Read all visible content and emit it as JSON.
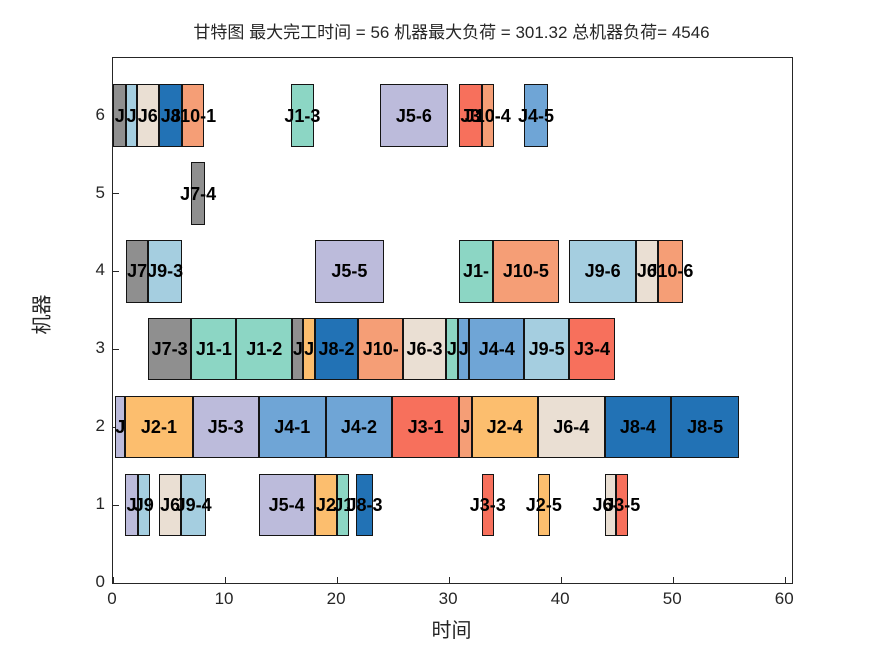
{
  "title": "甘特图 最大完工时间 = 56 机器最大负荷 = 301.32 总机器负荷= 4546",
  "stats": {
    "makespan": 56,
    "max_machine_load": 301.32,
    "total_machine_load": 4546
  },
  "chart_data": {
    "type": "bar",
    "subtype": "gantt",
    "title": "甘特图 最大完工时间 = 56 机器最大负荷 = 301.32 总机器负荷= 4546",
    "xlabel": "时间",
    "ylabel": "机器",
    "xlim": [
      0,
      60.6
    ],
    "ylim": [
      0,
      6.74
    ],
    "x_ticks": [
      0,
      10,
      20,
      30,
      40,
      50,
      60
    ],
    "y_ticks": [
      0,
      1,
      2,
      3,
      4,
      5,
      6
    ],
    "bar_height_units": 0.8,
    "grid": false,
    "legend": "none",
    "job_colors": {
      "J1": "#8CD6C4",
      "J2": "#FCBE6E",
      "J3": "#F7705C",
      "J4": "#6FA5D6",
      "J5": "#BCBBDB",
      "J6": "#EADFD3",
      "J7": "#8F8F8F",
      "J8": "#2272B5",
      "J9": "#A5CEE0",
      "J10": "#F59E76"
    },
    "bars": [
      {
        "machine": 6,
        "start": 0.0,
        "end": 1.2,
        "job": "J7",
        "label": "J"
      },
      {
        "machine": 6,
        "start": 1.2,
        "end": 2.1,
        "job": "J9",
        "label": "J"
      },
      {
        "machine": 6,
        "start": 2.1,
        "end": 4.1,
        "job": "J6",
        "label": "J6"
      },
      {
        "machine": 6,
        "start": 4.1,
        "end": 6.2,
        "job": "J8",
        "label": "J8"
      },
      {
        "machine": 6,
        "start": 6.2,
        "end": 8.1,
        "job": "J10",
        "label": "J10-1"
      },
      {
        "machine": 6,
        "start": 15.9,
        "end": 17.9,
        "job": "J1",
        "label": "J1-3"
      },
      {
        "machine": 6,
        "start": 23.8,
        "end": 29.9,
        "job": "J5",
        "label": "J5-6"
      },
      {
        "machine": 6,
        "start": 30.9,
        "end": 32.9,
        "job": "J3",
        "label": "J3"
      },
      {
        "machine": 6,
        "start": 32.9,
        "end": 34.0,
        "job": "J10",
        "label": "J10-4"
      },
      {
        "machine": 6,
        "start": 36.7,
        "end": 38.8,
        "job": "J4",
        "label": "J4-5"
      },
      {
        "machine": 5,
        "start": 7.0,
        "end": 8.2,
        "job": "J7",
        "label": "J7-4"
      },
      {
        "machine": 4,
        "start": 1.2,
        "end": 3.1,
        "job": "J7",
        "label": "J7"
      },
      {
        "machine": 4,
        "start": 3.1,
        "end": 6.2,
        "job": "J9",
        "label": "J9-3"
      },
      {
        "machine": 4,
        "start": 18.0,
        "end": 24.2,
        "job": "J5",
        "label": "J5-5"
      },
      {
        "machine": 4,
        "start": 30.9,
        "end": 33.9,
        "job": "J1",
        "label": "J1-"
      },
      {
        "machine": 4,
        "start": 33.9,
        "end": 39.8,
        "job": "J10",
        "label": "J10-5"
      },
      {
        "machine": 4,
        "start": 40.7,
        "end": 46.7,
        "job": "J9",
        "label": "J9-6"
      },
      {
        "machine": 4,
        "start": 46.7,
        "end": 48.6,
        "job": "J6",
        "label": "J6"
      },
      {
        "machine": 4,
        "start": 48.6,
        "end": 50.9,
        "job": "J10",
        "label": "J10-6"
      },
      {
        "machine": 3,
        "start": 3.1,
        "end": 7.0,
        "job": "J7",
        "label": "J7-3"
      },
      {
        "machine": 3,
        "start": 7.0,
        "end": 11.0,
        "job": "J1",
        "label": "J1-1"
      },
      {
        "machine": 3,
        "start": 11.0,
        "end": 16.0,
        "job": "J1",
        "label": "J1-2"
      },
      {
        "machine": 3,
        "start": 16.0,
        "end": 17.0,
        "job": "J7",
        "label": "J"
      },
      {
        "machine": 3,
        "start": 17.0,
        "end": 18.0,
        "job": "J2",
        "label": "J"
      },
      {
        "machine": 3,
        "start": 18.0,
        "end": 21.9,
        "job": "J8",
        "label": "J8-2"
      },
      {
        "machine": 3,
        "start": 21.9,
        "end": 25.9,
        "job": "J10",
        "label": "J10-"
      },
      {
        "machine": 3,
        "start": 25.9,
        "end": 29.7,
        "job": "J6",
        "label": "J6-3"
      },
      {
        "machine": 3,
        "start": 29.7,
        "end": 30.8,
        "job": "J1",
        "label": "J"
      },
      {
        "machine": 3,
        "start": 30.8,
        "end": 31.8,
        "job": "J4",
        "label": "J"
      },
      {
        "machine": 3,
        "start": 31.8,
        "end": 36.7,
        "job": "J4",
        "label": "J4-4"
      },
      {
        "machine": 3,
        "start": 36.7,
        "end": 40.7,
        "job": "J9",
        "label": "J9-5"
      },
      {
        "machine": 3,
        "start": 40.7,
        "end": 44.8,
        "job": "J3",
        "label": "J3-4"
      },
      {
        "machine": 2,
        "start": 0.2,
        "end": 1.1,
        "job": "J5",
        "label": "J"
      },
      {
        "machine": 2,
        "start": 1.1,
        "end": 7.1,
        "job": "J2",
        "label": "J2-1"
      },
      {
        "machine": 2,
        "start": 7.1,
        "end": 13.0,
        "job": "J5",
        "label": "J5-3"
      },
      {
        "machine": 2,
        "start": 13.0,
        "end": 19.0,
        "job": "J4",
        "label": "J4-1"
      },
      {
        "machine": 2,
        "start": 19.0,
        "end": 24.9,
        "job": "J4",
        "label": "J4-2"
      },
      {
        "machine": 2,
        "start": 24.9,
        "end": 30.9,
        "job": "J3",
        "label": "J3-1"
      },
      {
        "machine": 2,
        "start": 30.9,
        "end": 32.0,
        "job": "J10",
        "label": "J"
      },
      {
        "machine": 2,
        "start": 32.0,
        "end": 37.9,
        "job": "J2",
        "label": "J2-4"
      },
      {
        "machine": 2,
        "start": 37.9,
        "end": 43.9,
        "job": "J6",
        "label": "J6-4"
      },
      {
        "machine": 2,
        "start": 43.9,
        "end": 49.8,
        "job": "J8",
        "label": "J8-4"
      },
      {
        "machine": 2,
        "start": 49.8,
        "end": 55.9,
        "job": "J8",
        "label": "J8-5"
      },
      {
        "machine": 1,
        "start": 1.1,
        "end": 2.2,
        "job": "J5",
        "label": "J"
      },
      {
        "machine": 1,
        "start": 2.2,
        "end": 3.3,
        "job": "J9",
        "label": "J9"
      },
      {
        "machine": 1,
        "start": 4.1,
        "end": 6.1,
        "job": "J6",
        "label": "J6"
      },
      {
        "machine": 1,
        "start": 6.1,
        "end": 8.3,
        "job": "J9",
        "label": "J9-4"
      },
      {
        "machine": 1,
        "start": 13.0,
        "end": 18.0,
        "job": "J5",
        "label": "J5-4"
      },
      {
        "machine": 1,
        "start": 18.0,
        "end": 20.0,
        "job": "J2",
        "label": "J2"
      },
      {
        "machine": 1,
        "start": 20.0,
        "end": 21.1,
        "job": "J1",
        "label": "J1"
      },
      {
        "machine": 1,
        "start": 21.7,
        "end": 23.2,
        "job": "J8",
        "label": "J8-3"
      },
      {
        "machine": 1,
        "start": 32.9,
        "end": 34.0,
        "job": "J3",
        "label": "J3-3"
      },
      {
        "machine": 1,
        "start": 37.9,
        "end": 39.0,
        "job": "J2",
        "label": "J2-5"
      },
      {
        "machine": 1,
        "start": 43.9,
        "end": 44.9,
        "job": "J6",
        "label": "J6-5"
      },
      {
        "machine": 1,
        "start": 44.9,
        "end": 46.0,
        "job": "J3",
        "label": "J3-5"
      }
    ]
  }
}
